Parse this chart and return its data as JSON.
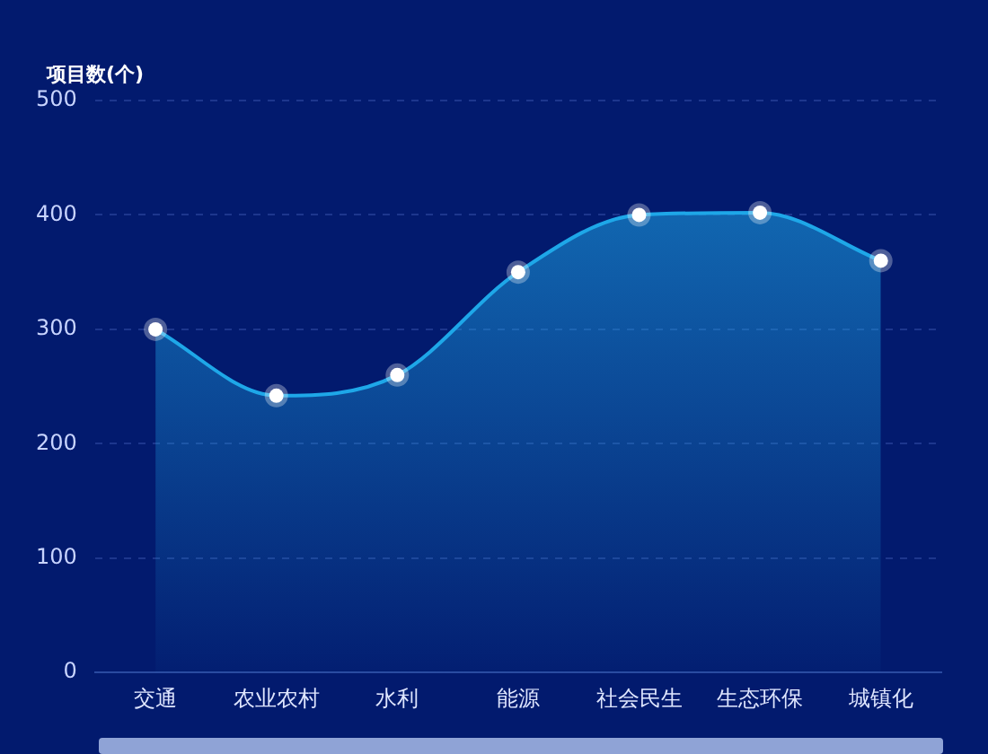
{
  "chart_data": {
    "type": "area",
    "ylabel": "项目数(个)",
    "categories": [
      "交通",
      "农业农村",
      "水利",
      "能源",
      "社会民生",
      "生态环保",
      "城镇化"
    ],
    "series": [
      {
        "color": "#1ea7e8",
        "values": [
          300,
          242,
          260,
          350,
          400,
          402,
          360
        ]
      }
    ],
    "ylim": [
      0,
      500
    ],
    "yticks": [
      0,
      100,
      200,
      300,
      400,
      500
    ],
    "grid": "y",
    "legend": false,
    "marker": "circle",
    "line_style": "solid"
  }
}
